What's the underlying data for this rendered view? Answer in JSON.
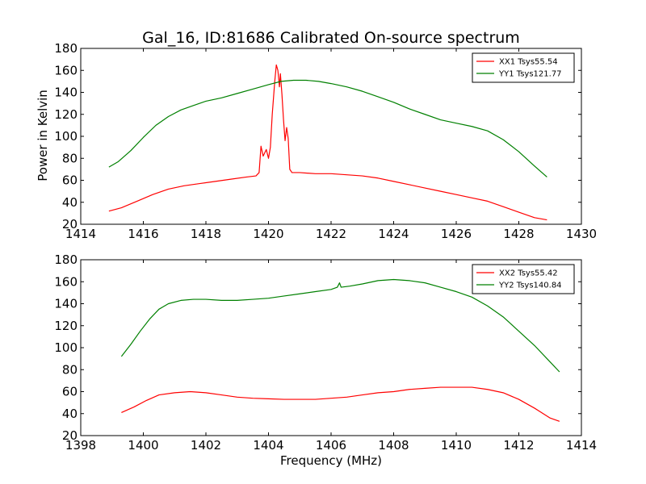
{
  "figure": {
    "title": "Gal_16, ID:81686 Calibrated On-source spectrum",
    "xlabel": "Frequency (MHz)",
    "ylabel": "Power in Kelvin"
  },
  "colors": {
    "xx": "#ff0000",
    "yy": "#008000",
    "axes": "#000000",
    "background": "#ffffff"
  },
  "chart_data": [
    {
      "type": "line",
      "title": "Gal_16, ID:81686 Calibrated On-source spectrum",
      "xlabel": "",
      "ylabel": "Power in Kelvin",
      "xlim": [
        1414,
        1430
      ],
      "ylim": [
        20,
        180
      ],
      "xticks": [
        1414,
        1416,
        1418,
        1420,
        1422,
        1424,
        1426,
        1428,
        1430
      ],
      "yticks": [
        20,
        40,
        60,
        80,
        100,
        120,
        140,
        160,
        180
      ],
      "grid": false,
      "legend_position": "top-right",
      "series": [
        {
          "name": "XX1 Tsys55.54",
          "color": "#ff0000",
          "points": [
            [
              1414.9,
              32
            ],
            [
              1415.3,
              35
            ],
            [
              1415.8,
              41
            ],
            [
              1416.3,
              47
            ],
            [
              1416.8,
              52
            ],
            [
              1417.3,
              55
            ],
            [
              1417.8,
              57
            ],
            [
              1418.3,
              59
            ],
            [
              1418.8,
              61
            ],
            [
              1419.3,
              63
            ],
            [
              1419.6,
              64
            ],
            [
              1419.7,
              67
            ],
            [
              1419.76,
              91
            ],
            [
              1419.83,
              82
            ],
            [
              1419.93,
              88
            ],
            [
              1420.0,
              80
            ],
            [
              1420.06,
              90
            ],
            [
              1420.12,
              120
            ],
            [
              1420.2,
              150
            ],
            [
              1420.25,
              165
            ],
            [
              1420.3,
              160
            ],
            [
              1420.35,
              145
            ],
            [
              1420.38,
              157
            ],
            [
              1420.43,
              138
            ],
            [
              1420.48,
              115
            ],
            [
              1420.53,
              96
            ],
            [
              1420.58,
              108
            ],
            [
              1420.63,
              98
            ],
            [
              1420.68,
              70
            ],
            [
              1420.75,
              67
            ],
            [
              1421.0,
              67
            ],
            [
              1421.5,
              66
            ],
            [
              1422.0,
              66
            ],
            [
              1422.5,
              65
            ],
            [
              1423.0,
              64
            ],
            [
              1423.5,
              62
            ],
            [
              1424.0,
              59
            ],
            [
              1424.5,
              56
            ],
            [
              1425.0,
              53
            ],
            [
              1425.5,
              50
            ],
            [
              1426.0,
              47
            ],
            [
              1426.5,
              44
            ],
            [
              1427.0,
              41
            ],
            [
              1427.5,
              36
            ],
            [
              1428.0,
              31
            ],
            [
              1428.5,
              26
            ],
            [
              1428.9,
              24
            ]
          ]
        },
        {
          "name": "YY1 Tsys121.77",
          "color": "#008000",
          "points": [
            [
              1414.9,
              72
            ],
            [
              1415.2,
              77
            ],
            [
              1415.6,
              87
            ],
            [
              1416.0,
              99
            ],
            [
              1416.4,
              110
            ],
            [
              1416.8,
              118
            ],
            [
              1417.2,
              124
            ],
            [
              1417.6,
              128
            ],
            [
              1418.0,
              132
            ],
            [
              1418.5,
              135
            ],
            [
              1419.0,
              139
            ],
            [
              1419.5,
              143
            ],
            [
              1420.0,
              147
            ],
            [
              1420.4,
              150
            ],
            [
              1420.8,
              151
            ],
            [
              1421.2,
              151
            ],
            [
              1421.6,
              150
            ],
            [
              1422.0,
              148
            ],
            [
              1422.5,
              145
            ],
            [
              1423.0,
              141
            ],
            [
              1423.5,
              136
            ],
            [
              1424.0,
              131
            ],
            [
              1424.5,
              125
            ],
            [
              1425.0,
              120
            ],
            [
              1425.5,
              115
            ],
            [
              1426.0,
              112
            ],
            [
              1426.5,
              109
            ],
            [
              1427.0,
              105
            ],
            [
              1427.5,
              97
            ],
            [
              1428.0,
              86
            ],
            [
              1428.5,
              73
            ],
            [
              1428.9,
              63
            ]
          ]
        }
      ]
    },
    {
      "type": "line",
      "title": "",
      "xlabel": "Frequency (MHz)",
      "ylabel": "",
      "xlim": [
        1398,
        1414
      ],
      "ylim": [
        20,
        180
      ],
      "xticks": [
        1398,
        1400,
        1402,
        1404,
        1406,
        1408,
        1410,
        1412,
        1414
      ],
      "yticks": [
        20,
        40,
        60,
        80,
        100,
        120,
        140,
        160,
        180
      ],
      "grid": false,
      "legend_position": "top-right",
      "series": [
        {
          "name": "XX2 Tsys55.42",
          "color": "#ff0000",
          "points": [
            [
              1399.3,
              41
            ],
            [
              1399.7,
              46
            ],
            [
              1400.1,
              52
            ],
            [
              1400.5,
              57
            ],
            [
              1401.0,
              59
            ],
            [
              1401.5,
              60
            ],
            [
              1402.0,
              59
            ],
            [
              1402.5,
              57
            ],
            [
              1403.0,
              55
            ],
            [
              1403.5,
              54
            ],
            [
              1404.0,
              53.5
            ],
            [
              1404.5,
              53
            ],
            [
              1405.0,
              53
            ],
            [
              1405.5,
              53
            ],
            [
              1406.0,
              54
            ],
            [
              1406.5,
              55
            ],
            [
              1407.0,
              57
            ],
            [
              1407.5,
              59
            ],
            [
              1408.0,
              60
            ],
            [
              1408.5,
              62
            ],
            [
              1409.0,
              63
            ],
            [
              1409.5,
              64
            ],
            [
              1410.0,
              64
            ],
            [
              1410.5,
              64
            ],
            [
              1411.0,
              62
            ],
            [
              1411.5,
              59
            ],
            [
              1412.0,
              53
            ],
            [
              1412.5,
              45
            ],
            [
              1413.0,
              36
            ],
            [
              1413.3,
              33
            ]
          ]
        },
        {
          "name": "YY2 Tsys140.84",
          "color": "#008000",
          "points": [
            [
              1399.3,
              92
            ],
            [
              1399.6,
              103
            ],
            [
              1399.9,
              115
            ],
            [
              1400.2,
              126
            ],
            [
              1400.5,
              135
            ],
            [
              1400.8,
              140
            ],
            [
              1401.2,
              143
            ],
            [
              1401.6,
              144
            ],
            [
              1402.0,
              144
            ],
            [
              1402.5,
              143
            ],
            [
              1403.0,
              143
            ],
            [
              1403.5,
              144
            ],
            [
              1404.0,
              145
            ],
            [
              1404.5,
              147
            ],
            [
              1405.0,
              149
            ],
            [
              1405.5,
              151
            ],
            [
              1406.0,
              153
            ],
            [
              1406.2,
              155
            ],
            [
              1406.27,
              159
            ],
            [
              1406.32,
              155
            ],
            [
              1406.6,
              156
            ],
            [
              1407.0,
              158
            ],
            [
              1407.5,
              161
            ],
            [
              1408.0,
              162
            ],
            [
              1408.5,
              161
            ],
            [
              1409.0,
              159
            ],
            [
              1409.5,
              155
            ],
            [
              1410.0,
              151
            ],
            [
              1410.5,
              146
            ],
            [
              1411.0,
              138
            ],
            [
              1411.5,
              128
            ],
            [
              1412.0,
              115
            ],
            [
              1412.5,
              102
            ],
            [
              1413.0,
              87
            ],
            [
              1413.3,
              78
            ]
          ]
        }
      ]
    }
  ]
}
